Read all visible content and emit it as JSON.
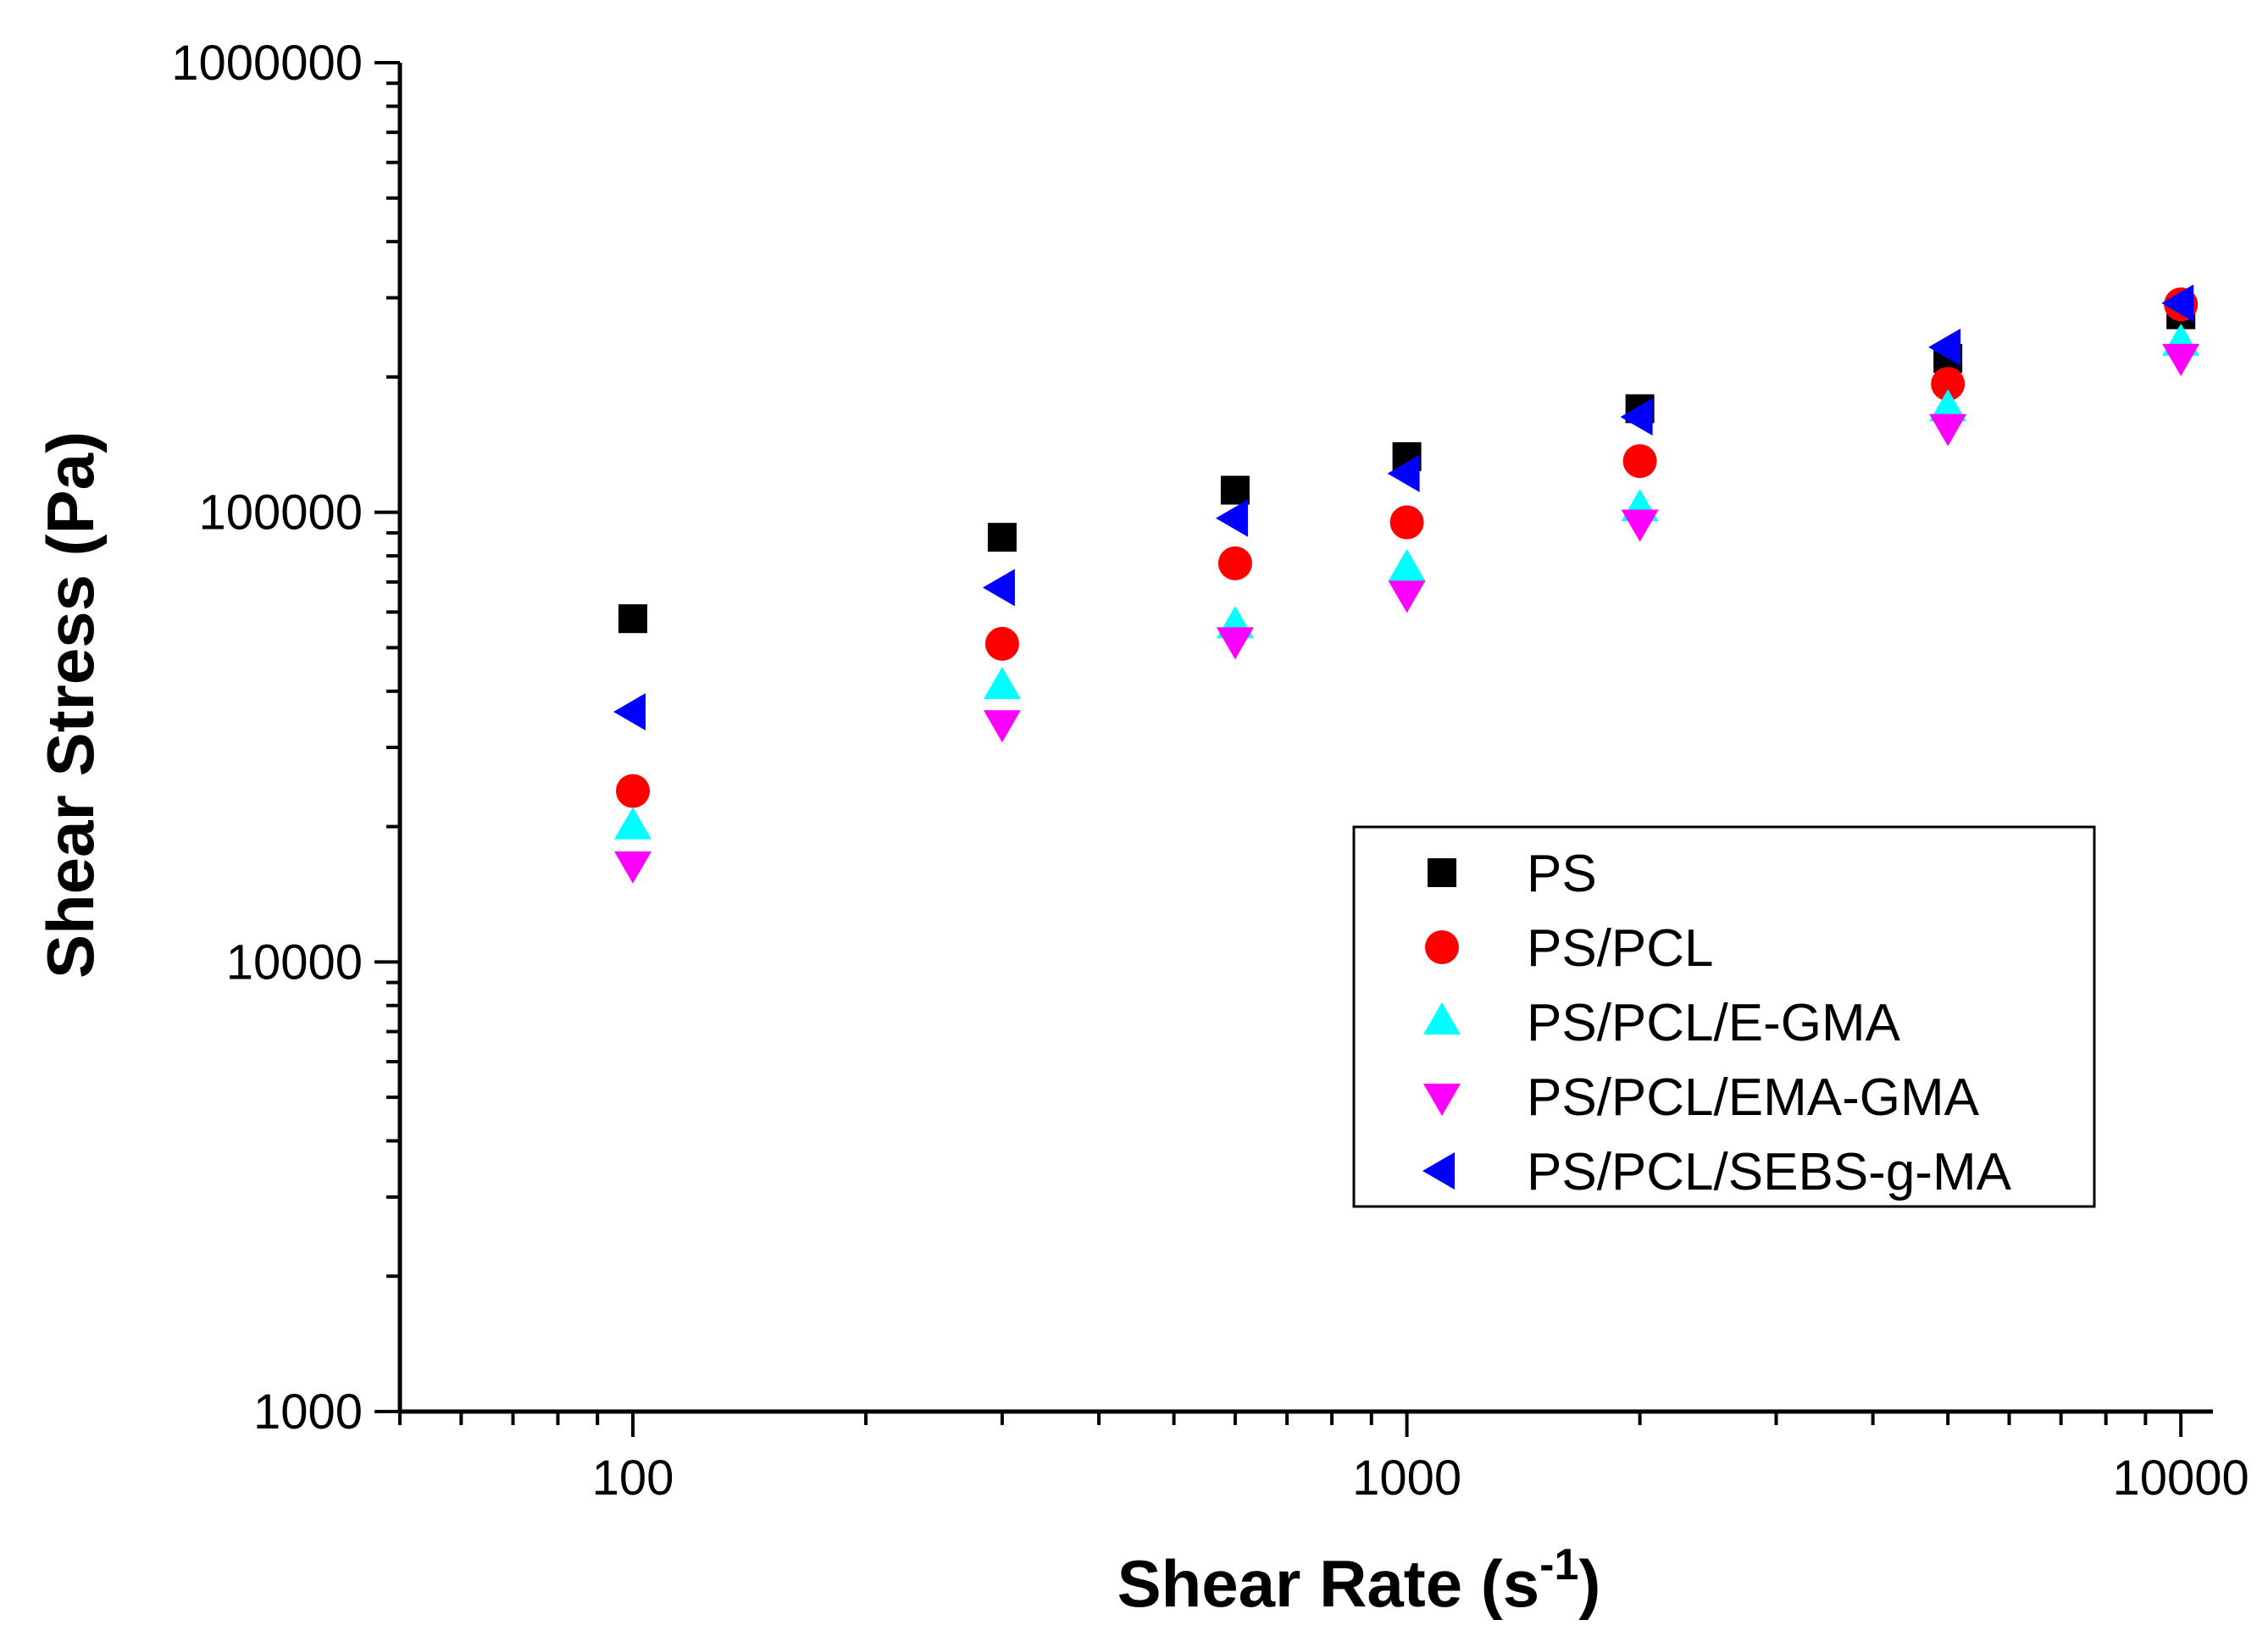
{
  "chart_data": {
    "type": "scatter",
    "title": "",
    "xlabel": "Shear Rate (s",
    "xlabel_sup": "-1",
    "xlabel_end": ")",
    "ylabel": "Shear Stress (Pa)",
    "xscale": "log",
    "yscale": "log",
    "xlim": [
      50,
      11000
    ],
    "ylim": [
      1000,
      1000000
    ],
    "x_ticks": [
      {
        "value": 100,
        "label": "100"
      },
      {
        "value": 1000,
        "label": "1000"
      },
      {
        "value": 10000,
        "label": "10000"
      }
    ],
    "y_ticks": [
      {
        "value": 1000,
        "label": "1000"
      },
      {
        "value": 10000,
        "label": "10000"
      },
      {
        "value": 100000,
        "label": "100000"
      },
      {
        "value": 1000000,
        "label": "1000000"
      }
    ],
    "grid": false,
    "legend_position": "right-center",
    "x": [
      100,
      300,
      600,
      1000,
      2000,
      5000,
      10000
    ],
    "series": [
      {
        "name": "PS",
        "marker": "square",
        "color": "#000000",
        "values": [
          58000,
          88000,
          112000,
          133000,
          170000,
          220000,
          275000
        ]
      },
      {
        "name": "PS/PCL",
        "marker": "circle",
        "color": "#ff0000",
        "values": [
          24000,
          51000,
          77000,
          95000,
          130000,
          193000,
          290000
        ]
      },
      {
        "name": "PS/PCL/E-GMA",
        "marker": "triangle-up",
        "color": "#00ffff",
        "values": [
          20000,
          41000,
          56000,
          75000,
          102000,
          170000,
          238000
        ]
      },
      {
        "name": "PS/PCL/EMA-GMA",
        "marker": "triangle-down",
        "color": "#ff00ff",
        "values": [
          16500,
          34000,
          52000,
          66000,
          95000,
          155000,
          222000
        ]
      },
      {
        "name": "PS/PCL/SEBS-g-MA",
        "marker": "triangle-left",
        "color": "#0000ff",
        "values": [
          36000,
          68000,
          97000,
          122000,
          163000,
          233000,
          292000
        ]
      }
    ]
  }
}
